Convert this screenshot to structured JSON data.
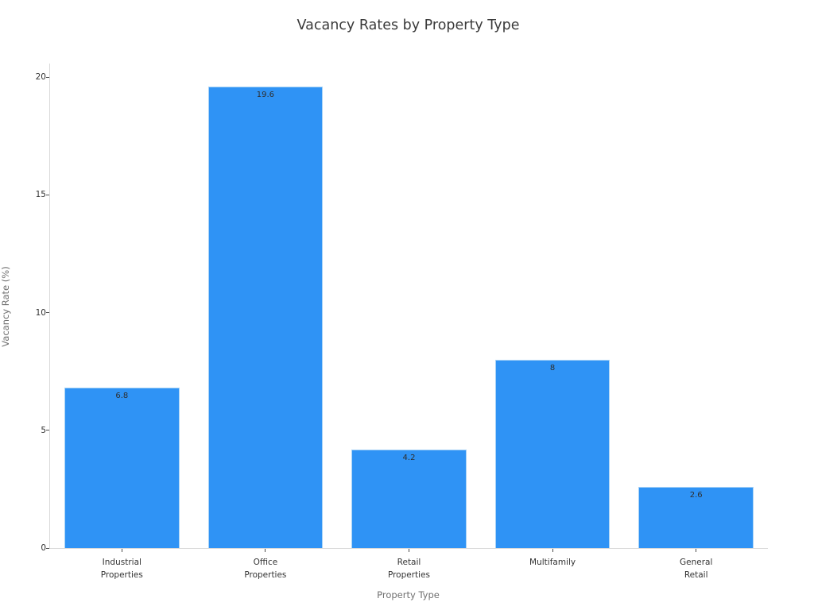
{
  "chart_data": {
    "type": "bar",
    "title": "Vacancy Rates by Property Type",
    "xlabel": "Property Type",
    "ylabel": "Vacancy Rate (%)",
    "categories": [
      "Industrial\nProperties",
      "Office\nProperties",
      "Retail\nProperties",
      "Multifamily",
      "General\nRetail"
    ],
    "values": [
      6.8,
      19.6,
      4.2,
      8,
      2.6
    ],
    "bar_value_labels": [
      "6.8",
      "19.6",
      "4.2",
      "8",
      "2.6"
    ],
    "yticks": [
      0,
      5,
      10,
      15,
      20
    ],
    "ylim": [
      0,
      20.58
    ],
    "grid": false,
    "legend_position": "none",
    "bar_color": "#2f93f5",
    "bar_edge_color": "#a9d3f6",
    "background_color": "#ffffff"
  }
}
